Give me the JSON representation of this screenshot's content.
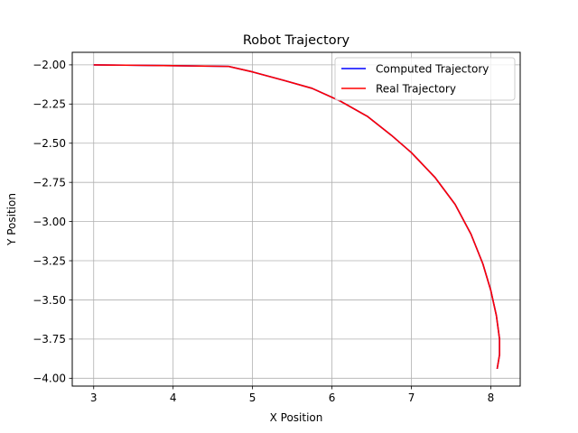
{
  "chart_data": {
    "type": "line",
    "title": "Robot Trajectory",
    "xlabel": "X Position",
    "ylabel": "Y Position",
    "xlim": [
      2.73,
      8.37
    ],
    "ylim": [
      -4.05,
      -1.92
    ],
    "xticks": [
      3,
      4,
      5,
      6,
      7,
      8
    ],
    "yticks": [
      -4.0,
      -3.75,
      -3.5,
      -3.25,
      -3.0,
      -2.75,
      -2.5,
      -2.25,
      -2.0
    ],
    "xtick_labels": [
      "3",
      "4",
      "5",
      "6",
      "7",
      "8"
    ],
    "ytick_labels": [
      "−4.00",
      "−3.75",
      "−3.50",
      "−3.25",
      "−3.00",
      "−2.75",
      "−2.50",
      "−2.25",
      "−2.00"
    ],
    "grid": true,
    "legend_position": "top-right",
    "series": [
      {
        "name": "Computed Trajectory",
        "color": "#0000ff",
        "points": [
          [
            3.0,
            -2.0
          ],
          [
            4.0,
            -2.005
          ],
          [
            4.7,
            -2.01
          ],
          [
            5.0,
            -2.045
          ],
          [
            5.4,
            -2.1
          ],
          [
            5.75,
            -2.15
          ],
          [
            6.1,
            -2.23
          ],
          [
            6.45,
            -2.33
          ],
          [
            6.75,
            -2.45
          ],
          [
            7.0,
            -2.56
          ],
          [
            7.3,
            -2.72
          ],
          [
            7.55,
            -2.89
          ],
          [
            7.75,
            -3.08
          ],
          [
            7.9,
            -3.27
          ],
          [
            8.0,
            -3.44
          ],
          [
            8.07,
            -3.6
          ],
          [
            8.11,
            -3.75
          ],
          [
            8.11,
            -3.85
          ],
          [
            8.08,
            -3.94
          ]
        ]
      },
      {
        "name": "Real Trajectory",
        "color": "#ff0000",
        "points": [
          [
            3.0,
            -2.0
          ],
          [
            4.0,
            -2.005
          ],
          [
            4.7,
            -2.01
          ],
          [
            5.0,
            -2.045
          ],
          [
            5.4,
            -2.1
          ],
          [
            5.75,
            -2.15
          ],
          [
            6.1,
            -2.23
          ],
          [
            6.45,
            -2.33
          ],
          [
            6.75,
            -2.45
          ],
          [
            7.0,
            -2.56
          ],
          [
            7.3,
            -2.72
          ],
          [
            7.55,
            -2.89
          ],
          [
            7.75,
            -3.08
          ],
          [
            7.9,
            -3.27
          ],
          [
            8.0,
            -3.44
          ],
          [
            8.07,
            -3.6
          ],
          [
            8.11,
            -3.75
          ],
          [
            8.11,
            -3.85
          ],
          [
            8.08,
            -3.94
          ]
        ]
      }
    ]
  }
}
